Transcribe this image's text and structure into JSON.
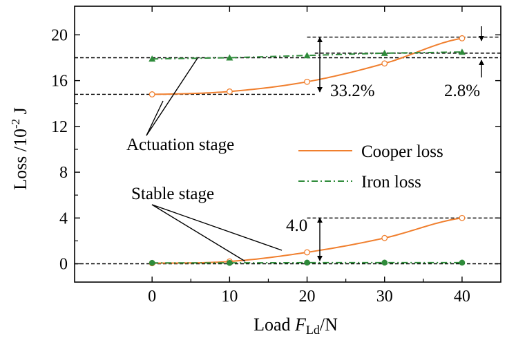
{
  "chart_data": {
    "type": "line",
    "xlabel_prefix": "Load ",
    "xlabel_var": "F",
    "xlabel_sub": "Ld",
    "xlabel_suffix": "/N",
    "ylabel_main": "Loss  /10",
    "ylabel_sup": "-2",
    "ylabel_unit": " J",
    "xlim": [
      -10,
      45
    ],
    "ylim": [
      -1.6,
      22.5
    ],
    "xticks": [
      0,
      10,
      20,
      30,
      40
    ],
    "xtick_labels": [
      "0",
      "10",
      "20",
      "30",
      "40"
    ],
    "yticks": [
      0,
      4,
      8,
      12,
      16,
      20
    ],
    "ytick_labels": [
      "0",
      "4",
      "8",
      "12",
      "16",
      "20"
    ],
    "x": [
      0,
      10,
      20,
      30,
      40
    ],
    "series": [
      {
        "name": "Cooper loss",
        "stage": "actuation",
        "color": "#F07F2E",
        "style": "solid",
        "marker": "open-circle",
        "values": [
          14.8,
          15.05,
          15.9,
          17.5,
          19.7
        ]
      },
      {
        "name": "Iron loss",
        "stage": "actuation",
        "color": "#2E8B3A",
        "style": "dashdot",
        "marker": "triangle",
        "values": [
          17.9,
          18.0,
          18.2,
          18.4,
          18.5
        ]
      },
      {
        "name": "Cooper loss",
        "stage": "stable",
        "color": "#F07F2E",
        "style": "solid",
        "marker": "open-circle",
        "values": [
          0.05,
          0.2,
          1.0,
          2.25,
          4.0
        ]
      },
      {
        "name": "Iron loss",
        "stage": "stable",
        "color": "#2E8B3A",
        "style": "dashdot",
        "marker": "filled-circle",
        "values": [
          0.08,
          0.08,
          0.1,
          0.1,
          0.1
        ]
      }
    ],
    "legend": {
      "position": "right",
      "entries": [
        "Cooper loss",
        "Iron loss"
      ]
    },
    "annotations": {
      "actuation_stage": "Actuation stage",
      "stable_stage": "Stable stage",
      "pct_332": "33.2%",
      "pct_28": "2.8%",
      "val_40": "4.0"
    },
    "colors": {
      "axis": "#000000",
      "reference_line": "#000000"
    }
  }
}
